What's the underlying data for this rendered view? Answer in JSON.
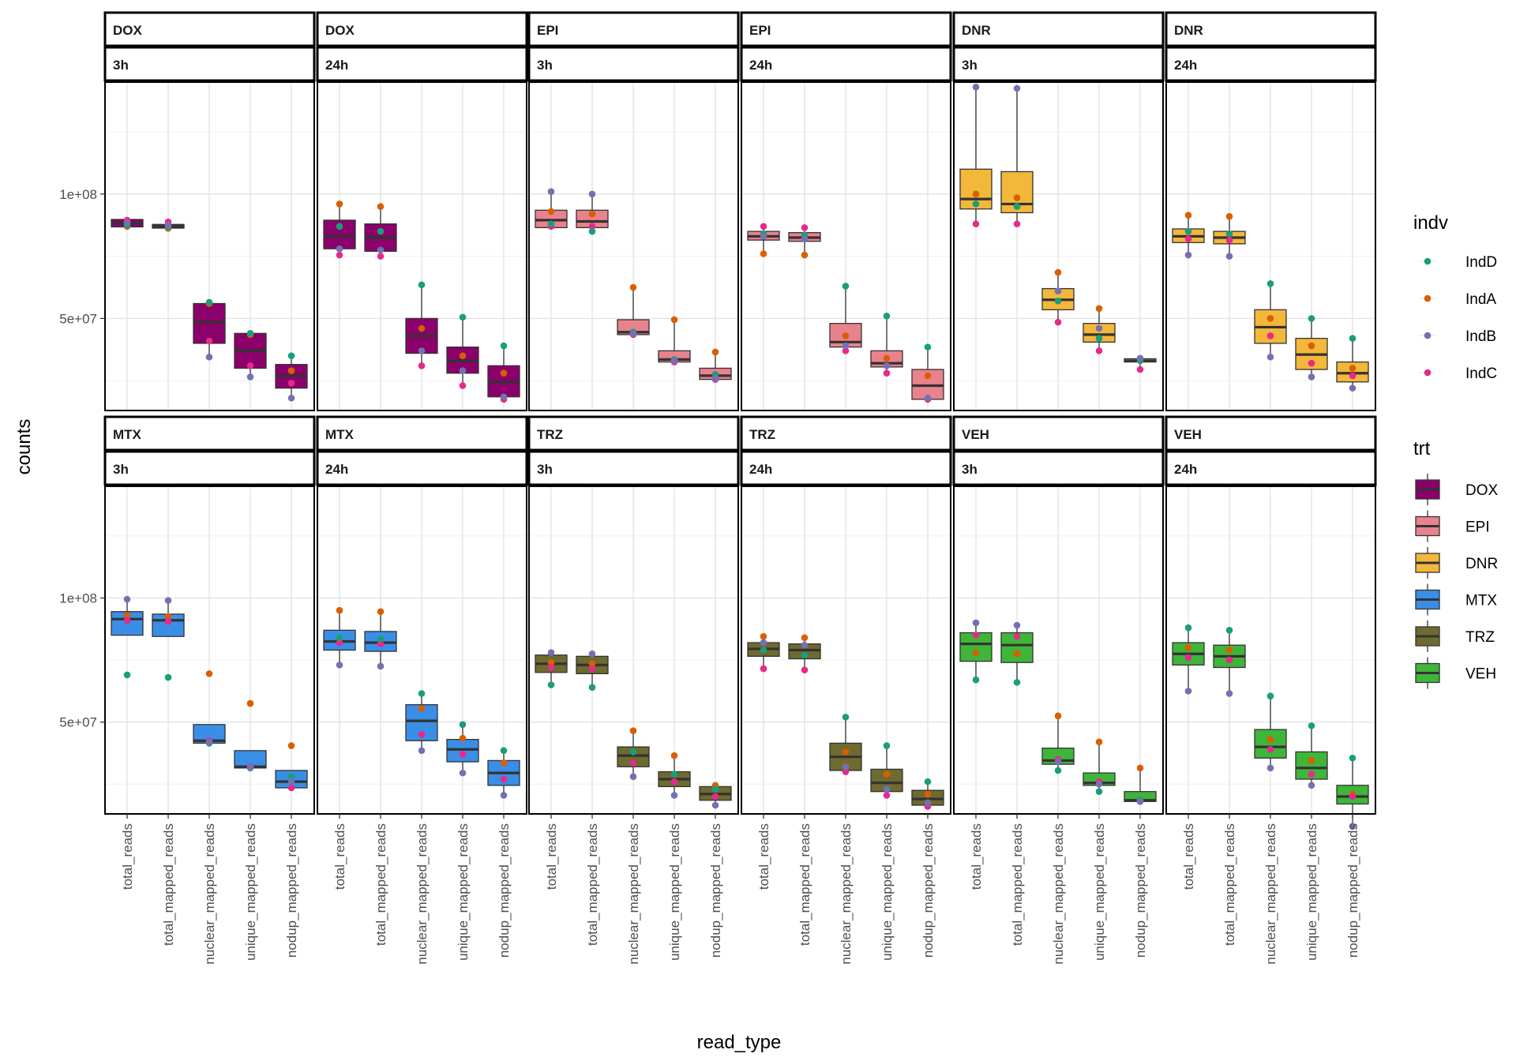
{
  "chart_data": {
    "type": "boxplot",
    "xlabel": "read_type",
    "ylabel": "counts",
    "y_tick_labels": [
      "5e+07",
      "1e+08"
    ],
    "y_ticks": [
      50000000,
      100000000
    ],
    "ylim": [
      13000000,
      145000000
    ],
    "grid": true,
    "categories": [
      "total_reads",
      "total_mapped_reads",
      "nuclear_mapped_reads",
      "unique_mapped_reads",
      "nodup_mapped_reads"
    ],
    "legend_position": "right",
    "legends": {
      "indv": {
        "title": "indv",
        "entries": [
          {
            "name": "IndD",
            "color": "#1b9e77"
          },
          {
            "name": "IndA",
            "color": "#d95f02"
          },
          {
            "name": "IndB",
            "color": "#7570b3"
          },
          {
            "name": "IndC",
            "color": "#e7298a"
          }
        ]
      },
      "trt": {
        "title": "trt",
        "entries": [
          {
            "name": "DOX",
            "color": "#8b006b"
          },
          {
            "name": "EPI",
            "color": "#e8828d"
          },
          {
            "name": "DNR",
            "color": "#f3b73a"
          },
          {
            "name": "MTX",
            "color": "#3a8ee6"
          },
          {
            "name": "TRZ",
            "color": "#6e6a30"
          },
          {
            "name": "VEH",
            "color": "#3fb53a"
          }
        ]
      }
    },
    "panels": [
      {
        "trt": "DOX",
        "time": "3h",
        "row": 0,
        "col": 0,
        "boxes": [
          {
            "q1": 86.8,
            "med": 88.2,
            "q3": 89.8,
            "lo": 86.5,
            "hi": 90.0,
            "pts": [
              87.5,
              87.0,
              88.5,
              89.5
            ]
          },
          {
            "q1": 86.3,
            "med": 87.0,
            "q3": 87.8,
            "lo": 86.0,
            "hi": 88.5,
            "pts": [
              86.8,
              86.2,
              87.5,
              88.8
            ]
          },
          {
            "q1": 40.0,
            "med": 48.5,
            "q3": 56.0,
            "lo": 34.0,
            "hi": 57.0,
            "pts": [
              56.5,
              56.0,
              34.5,
              41.0
            ]
          },
          {
            "q1": 30.0,
            "med": 37.0,
            "q3": 44.0,
            "lo": 26.5,
            "hi": 45.0,
            "pts": [
              44.0,
              43.5,
              26.5,
              31.0
            ]
          },
          {
            "q1": 22.0,
            "med": 27.0,
            "q3": 31.5,
            "lo": 18.0,
            "hi": 35.5,
            "pts": [
              35.0,
              29.0,
              18.0,
              24.0
            ]
          }
        ]
      },
      {
        "trt": "DOX",
        "time": "24h",
        "row": 0,
        "col": 1,
        "boxes": [
          {
            "q1": 78.0,
            "med": 83.0,
            "q3": 89.5,
            "lo": 75.5,
            "hi": 96.0,
            "pts": [
              87.0,
              96.0,
              78.0,
              75.5
            ]
          },
          {
            "q1": 77.0,
            "med": 82.5,
            "q3": 88.0,
            "lo": 75.0,
            "hi": 95.0,
            "pts": [
              85.0,
              95.0,
              77.5,
              75.0
            ]
          },
          {
            "q1": 36.0,
            "med": 43.0,
            "q3": 50.0,
            "lo": 31.0,
            "hi": 63.5,
            "pts": [
              63.5,
              46.0,
              37.0,
              31.0
            ]
          },
          {
            "q1": 28.0,
            "med": 33.0,
            "q3": 38.5,
            "lo": 23.0,
            "hi": 50.5,
            "pts": [
              50.5,
              35.0,
              29.0,
              23.0
            ]
          },
          {
            "q1": 18.5,
            "med": 24.5,
            "q3": 31.0,
            "lo": 17.5,
            "hi": 39.0,
            "pts": [
              39.0,
              28.0,
              18.5,
              17.5
            ]
          }
        ]
      },
      {
        "trt": "EPI",
        "time": "3h",
        "row": 0,
        "col": 2,
        "boxes": [
          {
            "q1": 86.5,
            "med": 89.5,
            "q3": 93.5,
            "lo": 86.5,
            "hi": 101.0,
            "pts": [
              88.0,
              93.0,
              101.0,
              87.0
            ]
          },
          {
            "q1": 86.5,
            "med": 89.0,
            "q3": 93.5,
            "lo": 85.0,
            "hi": 100.0,
            "pts": [
              85.0,
              92.0,
              100.0,
              87.0
            ]
          },
          {
            "q1": 43.5,
            "med": 44.5,
            "q3": 49.5,
            "lo": 43.0,
            "hi": 62.5,
            "pts": [
              44.5,
              62.5,
              44.0,
              43.5
            ]
          },
          {
            "q1": 32.5,
            "med": 33.5,
            "q3": 37.0,
            "lo": 32.0,
            "hi": 49.5,
            "pts": [
              33.5,
              49.5,
              33.0,
              32.5
            ]
          },
          {
            "q1": 25.5,
            "med": 27.0,
            "q3": 30.0,
            "lo": 25.0,
            "hi": 36.5,
            "pts": [
              27.5,
              36.5,
              26.0,
              25.5
            ]
          }
        ]
      },
      {
        "trt": "EPI",
        "time": "24h",
        "row": 0,
        "col": 3,
        "boxes": [
          {
            "q1": 81.5,
            "med": 83.0,
            "q3": 85.0,
            "lo": 76.0,
            "hi": 87.0,
            "pts": [
              84.0,
              76.0,
              83.0,
              87.0
            ]
          },
          {
            "q1": 81.0,
            "med": 82.5,
            "q3": 84.5,
            "lo": 75.5,
            "hi": 86.5,
            "pts": [
              83.5,
              75.5,
              82.0,
              86.5
            ]
          },
          {
            "q1": 38.5,
            "med": 40.5,
            "q3": 48.0,
            "lo": 37.0,
            "hi": 63.0,
            "pts": [
              63.0,
              43.0,
              39.0,
              37.0
            ]
          },
          {
            "q1": 30.5,
            "med": 32.0,
            "q3": 37.0,
            "lo": 28.0,
            "hi": 51.0,
            "pts": [
              51.0,
              34.0,
              31.0,
              28.0
            ]
          },
          {
            "q1": 17.5,
            "med": 23.0,
            "q3": 29.5,
            "lo": 17.0,
            "hi": 38.5,
            "pts": [
              38.5,
              27.0,
              18.0,
              17.5
            ]
          }
        ]
      },
      {
        "trt": "DNR",
        "time": "3h",
        "row": 0,
        "col": 4,
        "boxes": [
          {
            "q1": 94.0,
            "med": 98.0,
            "q3": 110.0,
            "lo": 88.0,
            "hi": 143.0,
            "pts": [
              96.0,
              100.0,
              143.0,
              88.0
            ]
          },
          {
            "q1": 92.5,
            "med": 96.0,
            "q3": 109.0,
            "lo": 88.0,
            "hi": 142.5,
            "pts": [
              95.0,
              98.5,
              142.5,
              88.0
            ]
          },
          {
            "q1": 53.5,
            "med": 57.5,
            "q3": 62.0,
            "lo": 48.5,
            "hi": 68.5,
            "pts": [
              57.0,
              68.5,
              61.0,
              48.5
            ]
          },
          {
            "q1": 40.5,
            "med": 43.5,
            "q3": 48.0,
            "lo": 37.0,
            "hi": 54.0,
            "pts": [
              42.0,
              54.0,
              46.0,
              37.0
            ]
          },
          {
            "q1": 32.5,
            "med": 33.0,
            "q3": 33.8,
            "lo": 29.5,
            "hi": 34.5,
            "pts": [
              33.0,
              33.5,
              34.0,
              29.5
            ]
          }
        ]
      },
      {
        "trt": "DNR",
        "time": "24h",
        "row": 0,
        "col": 5,
        "boxes": [
          {
            "q1": 80.5,
            "med": 83.0,
            "q3": 86.0,
            "lo": 75.5,
            "hi": 91.5,
            "pts": [
              85.0,
              91.5,
              75.5,
              82.0
            ]
          },
          {
            "q1": 80.0,
            "med": 82.5,
            "q3": 85.0,
            "lo": 75.0,
            "hi": 91.0,
            "pts": [
              84.0,
              91.0,
              75.0,
              81.5
            ]
          },
          {
            "q1": 40.0,
            "med": 46.5,
            "q3": 53.5,
            "lo": 34.5,
            "hi": 64.0,
            "pts": [
              64.0,
              50.0,
              34.5,
              43.0
            ]
          },
          {
            "q1": 29.5,
            "med": 35.5,
            "q3": 42.0,
            "lo": 26.5,
            "hi": 50.0,
            "pts": [
              50.0,
              39.0,
              26.5,
              32.0
            ]
          },
          {
            "q1": 24.5,
            "med": 28.0,
            "q3": 32.5,
            "lo": 22.0,
            "hi": 42.0,
            "pts": [
              42.0,
              30.0,
              22.0,
              27.0
            ]
          }
        ]
      },
      {
        "trt": "MTX",
        "time": "3h",
        "row": 1,
        "col": 0,
        "boxes": [
          {
            "q1": 85.0,
            "med": 91.5,
            "q3": 94.5,
            "lo": 85.0,
            "hi": 99.5,
            "pts": [
              69.0,
              93.0,
              99.5,
              91.0
            ]
          },
          {
            "q1": 84.5,
            "med": 91.0,
            "q3": 93.5,
            "lo": 84.5,
            "hi": 99.0,
            "pts": [
              68.0,
              92.5,
              99.0,
              90.5
            ]
          },
          {
            "q1": 41.5,
            "med": 42.5,
            "q3": 49.0,
            "lo": 41.5,
            "hi": 49.0,
            "pts": [
              41.5,
              69.5,
              42.0,
              42.5
            ]
          },
          {
            "q1": 31.5,
            "med": 32.0,
            "q3": 38.5,
            "lo": 31.5,
            "hi": 38.5,
            "pts": [
              31.5,
              57.5,
              31.8,
              32.0
            ]
          },
          {
            "q1": 23.5,
            "med": 26.0,
            "q3": 30.5,
            "lo": 23.0,
            "hi": 30.5,
            "pts": [
              28.0,
              40.5,
              26.0,
              23.5
            ]
          }
        ]
      },
      {
        "trt": "MTX",
        "time": "24h",
        "row": 1,
        "col": 1,
        "boxes": [
          {
            "q1": 79.0,
            "med": 82.5,
            "q3": 87.0,
            "lo": 73.0,
            "hi": 95.0,
            "pts": [
              84.0,
              95.0,
              73.0,
              82.0
            ]
          },
          {
            "q1": 78.5,
            "med": 82.0,
            "q3": 86.5,
            "lo": 72.5,
            "hi": 94.5,
            "pts": [
              83.5,
              94.5,
              72.5,
              81.5
            ]
          },
          {
            "q1": 42.5,
            "med": 50.5,
            "q3": 57.0,
            "lo": 38.5,
            "hi": 61.5,
            "pts": [
              61.5,
              55.5,
              38.5,
              45.0
            ]
          },
          {
            "q1": 34.0,
            "med": 39.0,
            "q3": 43.0,
            "lo": 29.5,
            "hi": 49.0,
            "pts": [
              49.0,
              43.5,
              29.5,
              37.0
            ]
          },
          {
            "q1": 24.5,
            "med": 29.5,
            "q3": 34.5,
            "lo": 20.5,
            "hi": 38.5,
            "pts": [
              38.5,
              33.5,
              20.5,
              27.0
            ]
          }
        ]
      },
      {
        "trt": "TRZ",
        "time": "3h",
        "row": 1,
        "col": 2,
        "boxes": [
          {
            "q1": 70.0,
            "med": 73.5,
            "q3": 77.0,
            "lo": 65.0,
            "hi": 78.0,
            "pts": [
              65.0,
              74.0,
              78.0,
              72.0
            ]
          },
          {
            "q1": 69.5,
            "med": 73.0,
            "q3": 76.5,
            "lo": 64.0,
            "hi": 77.5,
            "pts": [
              64.0,
              73.5,
              77.5,
              71.5
            ]
          },
          {
            "q1": 32.0,
            "med": 36.5,
            "q3": 40.0,
            "lo": 28.0,
            "hi": 46.5,
            "pts": [
              38.0,
              46.5,
              28.0,
              33.5
            ]
          },
          {
            "q1": 24.0,
            "med": 27.0,
            "q3": 30.0,
            "lo": 20.5,
            "hi": 36.5,
            "pts": [
              29.0,
              36.5,
              20.5,
              26.0
            ]
          },
          {
            "q1": 18.5,
            "med": 21.0,
            "q3": 24.0,
            "lo": 16.5,
            "hi": 24.5,
            "pts": [
              23.0,
              24.5,
              16.5,
              20.0
            ]
          }
        ]
      },
      {
        "trt": "TRZ",
        "time": "24h",
        "row": 1,
        "col": 3,
        "boxes": [
          {
            "q1": 76.5,
            "med": 79.5,
            "q3": 82.0,
            "lo": 71.5,
            "hi": 84.5,
            "pts": [
              79.0,
              84.5,
              82.0,
              71.5
            ]
          },
          {
            "q1": 75.5,
            "med": 79.0,
            "q3": 81.5,
            "lo": 71.0,
            "hi": 84.0,
            "pts": [
              77.0,
              84.0,
              81.0,
              71.0
            ]
          },
          {
            "q1": 30.5,
            "med": 36.0,
            "q3": 41.5,
            "lo": 30.0,
            "hi": 52.0,
            "pts": [
              52.0,
              38.0,
              32.0,
              30.0
            ]
          },
          {
            "q1": 22.0,
            "med": 25.5,
            "q3": 31.0,
            "lo": 20.5,
            "hi": 40.5,
            "pts": [
              40.5,
              29.0,
              23.0,
              20.5
            ]
          },
          {
            "q1": 16.5,
            "med": 19.0,
            "q3": 22.5,
            "lo": 16.0,
            "hi": 26.0,
            "pts": [
              26.0,
              21.0,
              17.5,
              16.0
            ]
          }
        ]
      },
      {
        "trt": "VEH",
        "time": "3h",
        "row": 1,
        "col": 4,
        "boxes": [
          {
            "q1": 74.5,
            "med": 81.5,
            "q3": 86.0,
            "lo": 67.0,
            "hi": 90.0,
            "pts": [
              67.0,
              78.0,
              90.0,
              85.0
            ]
          },
          {
            "q1": 74.0,
            "med": 81.0,
            "q3": 86.0,
            "lo": 66.0,
            "hi": 89.0,
            "pts": [
              66.0,
              77.5,
              89.0,
              84.5
            ]
          },
          {
            "q1": 33.0,
            "med": 34.5,
            "q3": 39.5,
            "lo": 30.5,
            "hi": 52.5,
            "pts": [
              30.5,
              52.5,
              34.0,
              35.0
            ]
          },
          {
            "q1": 24.5,
            "med": 25.5,
            "q3": 29.5,
            "lo": 22.0,
            "hi": 42.0,
            "pts": [
              22.0,
              42.0,
              25.0,
              26.0
            ]
          },
          {
            "q1": 18.0,
            "med": 18.5,
            "q3": 22.0,
            "lo": 18.0,
            "hi": 31.5,
            "pts": [
              18.5,
              31.5,
              18.0,
              18.5
            ]
          }
        ]
      },
      {
        "trt": "VEH",
        "time": "24h",
        "row": 1,
        "col": 5,
        "boxes": [
          {
            "q1": 73.0,
            "med": 77.5,
            "q3": 82.0,
            "lo": 62.5,
            "hi": 88.0,
            "pts": [
              88.0,
              80.0,
              62.5,
              76.0
            ]
          },
          {
            "q1": 72.0,
            "med": 76.5,
            "q3": 81.0,
            "lo": 61.5,
            "hi": 87.0,
            "pts": [
              87.0,
              79.0,
              61.5,
              75.0
            ]
          },
          {
            "q1": 35.5,
            "med": 40.0,
            "q3": 47.0,
            "lo": 31.5,
            "hi": 60.5,
            "pts": [
              60.5,
              43.0,
              31.5,
              39.0
            ]
          },
          {
            "q1": 27.0,
            "med": 31.5,
            "q3": 38.0,
            "lo": 24.5,
            "hi": 48.5,
            "pts": [
              48.5,
              34.5,
              24.5,
              29.0
            ]
          },
          {
            "q1": 17.0,
            "med": 20.0,
            "q3": 24.5,
            "lo": 8.0,
            "hi": 35.5,
            "pts": [
              35.5,
              21.0,
              8.0,
              20.0
            ]
          }
        ]
      }
    ]
  }
}
